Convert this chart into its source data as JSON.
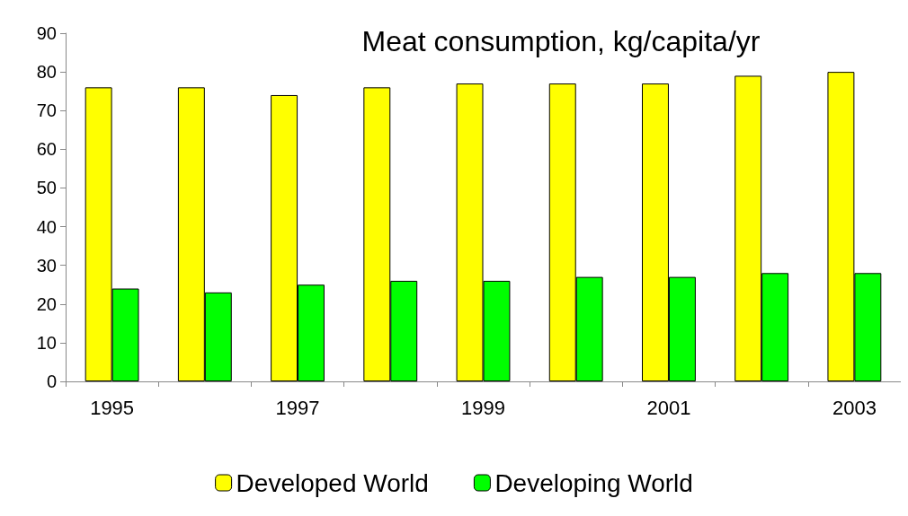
{
  "chart_data": {
    "type": "bar",
    "title": "Meat consumption, kg/capita/yr",
    "categories": [
      "1995",
      null,
      "1997",
      null,
      "1999",
      null,
      "2001",
      null,
      "2003"
    ],
    "series": [
      {
        "name": "Developed World",
        "color": "#ffff00",
        "values": [
          76,
          76,
          74,
          76,
          77,
          77,
          77,
          79,
          80
        ]
      },
      {
        "name": "Developing World",
        "color": "#00ff00",
        "values": [
          24,
          23,
          25,
          26,
          26,
          27,
          27,
          28,
          28
        ]
      }
    ],
    "ylim": [
      0,
      90
    ],
    "yticks": [
      0,
      10,
      20,
      30,
      40,
      50,
      60,
      70,
      80,
      90
    ],
    "grid": false,
    "legend": "bottom"
  }
}
